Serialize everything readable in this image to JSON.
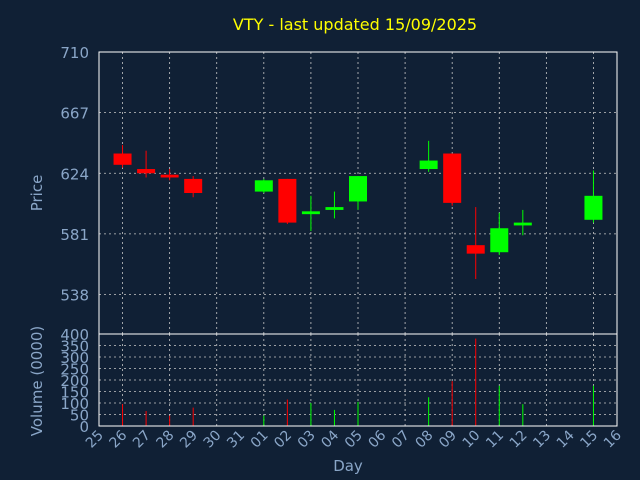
{
  "colors": {
    "background": "#102035",
    "frame": "#ffffff",
    "grid": "#c8c8c8",
    "title": "#ffff00",
    "labels": "#8aa6c8",
    "up": "#00ff00",
    "down": "#ff0000"
  },
  "chart_data": [
    {
      "type": "candlestick",
      "title": "VTY - last updated 15/09/2025",
      "ylabel": "Price",
      "ylim": [
        510,
        710
      ],
      "yticks": [
        710,
        667,
        624,
        581,
        538
      ],
      "grid": true,
      "x": [
        "25",
        "26",
        "27",
        "28",
        "29",
        "30",
        "31",
        "01",
        "02",
        "03",
        "04",
        "05",
        "06",
        "07",
        "08",
        "09",
        "10",
        "11",
        "12",
        "13",
        "14",
        "15",
        "16"
      ],
      "candles": [
        {
          "day": "26",
          "open": 638,
          "close": 630,
          "high": 644,
          "low": 628
        },
        {
          "day": "27",
          "open": 627,
          "close": 624,
          "high": 640,
          "low": 621
        },
        {
          "day": "28",
          "open": 623,
          "close": 621,
          "high": 627,
          "low": 619
        },
        {
          "day": "29",
          "open": 620,
          "close": 610,
          "high": 622,
          "low": 607
        },
        {
          "day": "01",
          "open": 611,
          "close": 619,
          "high": 620,
          "low": 610
        },
        {
          "day": "02",
          "open": 620,
          "close": 589,
          "high": 620,
          "low": 588
        },
        {
          "day": "03",
          "open": 595,
          "close": 597,
          "high": 608,
          "low": 583
        },
        {
          "day": "04",
          "open": 598,
          "close": 600,
          "high": 611,
          "low": 592
        },
        {
          "day": "05",
          "open": 604,
          "close": 622,
          "high": 622,
          "low": 598
        },
        {
          "day": "08",
          "open": 627,
          "close": 633,
          "high": 647,
          "low": 625
        },
        {
          "day": "09",
          "open": 638,
          "close": 603,
          "high": 638,
          "low": 601
        },
        {
          "day": "10",
          "open": 573,
          "close": 567,
          "high": 600,
          "low": 549
        },
        {
          "day": "11",
          "open": 568,
          "close": 585,
          "high": 596,
          "low": 566
        },
        {
          "day": "12",
          "open": 587,
          "close": 589,
          "high": 598,
          "low": 580
        },
        {
          "day": "15",
          "open": 591,
          "close": 608,
          "high": 626,
          "low": 589
        }
      ]
    },
    {
      "type": "bar",
      "ylabel": "Volume (0000)",
      "xlabel": "Day",
      "ylim": [
        0,
        400
      ],
      "yticks": [
        400,
        350,
        300,
        250,
        200,
        150,
        100,
        50,
        0
      ],
      "grid": true,
      "bars": [
        {
          "day": "26",
          "value": 95,
          "direction": "down"
        },
        {
          "day": "27",
          "value": 65,
          "direction": "down"
        },
        {
          "day": "28",
          "value": 45,
          "direction": "down"
        },
        {
          "day": "29",
          "value": 80,
          "direction": "down"
        },
        {
          "day": "01",
          "value": 45,
          "direction": "up"
        },
        {
          "day": "02",
          "value": 115,
          "direction": "down"
        },
        {
          "day": "03",
          "value": 100,
          "direction": "up"
        },
        {
          "day": "04",
          "value": 70,
          "direction": "up"
        },
        {
          "day": "05",
          "value": 105,
          "direction": "up"
        },
        {
          "day": "08",
          "value": 125,
          "direction": "up"
        },
        {
          "day": "09",
          "value": 195,
          "direction": "down"
        },
        {
          "day": "10",
          "value": 380,
          "direction": "down"
        },
        {
          "day": "11",
          "value": 175,
          "direction": "up"
        },
        {
          "day": "12",
          "value": 95,
          "direction": "up"
        },
        {
          "day": "15",
          "value": 175,
          "direction": "up"
        }
      ]
    }
  ]
}
